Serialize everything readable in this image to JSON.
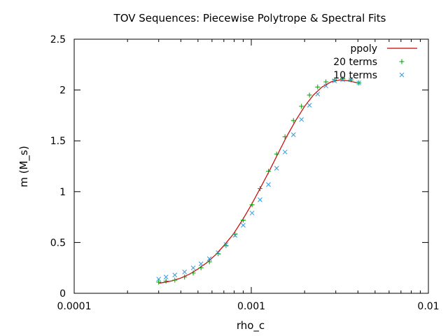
{
  "chart_data": {
    "type": "scatter",
    "title": "TOV Sequences: Piecewise Polytrope & Spectral Fits",
    "xlabel": "rho_c",
    "ylabel": "m (M_s)",
    "xscale": "log",
    "xlim": [
      0.0001,
      0.01
    ],
    "ylim": [
      0,
      2.5
    ],
    "xticks": [
      {
        "value": 0.0001,
        "label": "0.0001"
      },
      {
        "value": 0.001,
        "label": "0.001"
      },
      {
        "value": 0.01,
        "label": "0.01"
      }
    ],
    "yticks": [
      {
        "value": 0,
        "label": "0"
      },
      {
        "value": 0.5,
        "label": "0.5"
      },
      {
        "value": 1,
        "label": "1"
      },
      {
        "value": 1.5,
        "label": "1.5"
      },
      {
        "value": 2,
        "label": "2"
      },
      {
        "value": 2.5,
        "label": "2.5"
      }
    ],
    "grid": false,
    "legend_position": "top-right",
    "series": [
      {
        "name": "ppoly",
        "style": "line",
        "color": "#cc0000",
        "points": [
          [
            0.000302,
            0.1
          ],
          [
            0.00033,
            0.11
          ],
          [
            0.00036,
            0.125
          ],
          [
            0.0004,
            0.15
          ],
          [
            0.00045,
            0.19
          ],
          [
            0.0005,
            0.24
          ],
          [
            0.00056,
            0.3
          ],
          [
            0.00063,
            0.38
          ],
          [
            0.0007,
            0.47
          ],
          [
            0.00079,
            0.58
          ],
          [
            0.00089,
            0.72
          ],
          [
            0.001,
            0.87
          ],
          [
            0.00112,
            1.03
          ],
          [
            0.00126,
            1.2
          ],
          [
            0.00141,
            1.37
          ],
          [
            0.00158,
            1.54
          ],
          [
            0.00178,
            1.7
          ],
          [
            0.002,
            1.84
          ],
          [
            0.00224,
            1.95
          ],
          [
            0.00251,
            2.03
          ],
          [
            0.00282,
            2.08
          ],
          [
            0.00316,
            2.1
          ],
          [
            0.00355,
            2.09
          ],
          [
            0.00398,
            2.07
          ]
        ]
      },
      {
        "name": "20 terms",
        "style": "plus",
        "color": "#009e00",
        "points": [
          [
            0.0003,
            0.11
          ],
          [
            0.00033,
            0.12
          ],
          [
            0.00037,
            0.13
          ],
          [
            0.00042,
            0.16
          ],
          [
            0.00047,
            0.2
          ],
          [
            0.00052,
            0.25
          ],
          [
            0.00058,
            0.31
          ],
          [
            0.00065,
            0.39
          ],
          [
            0.00072,
            0.47
          ],
          [
            0.00081,
            0.58
          ],
          [
            0.0009,
            0.72
          ],
          [
            0.00101,
            0.87
          ],
          [
            0.00112,
            1.03
          ],
          [
            0.00125,
            1.2
          ],
          [
            0.00139,
            1.37
          ],
          [
            0.00155,
            1.54
          ],
          [
            0.00173,
            1.7
          ],
          [
            0.00192,
            1.84
          ],
          [
            0.00213,
            1.95
          ],
          [
            0.00237,
            2.03
          ],
          [
            0.00264,
            2.08
          ],
          [
            0.00295,
            2.1
          ],
          [
            0.00328,
            2.11
          ],
          [
            0.00365,
            2.1
          ],
          [
            0.00405,
            2.07
          ]
        ]
      },
      {
        "name": "10 terms",
        "style": "cross",
        "color": "#3399dd",
        "points": [
          [
            0.0003,
            0.14
          ],
          [
            0.00033,
            0.16
          ],
          [
            0.00037,
            0.18
          ],
          [
            0.00042,
            0.21
          ],
          [
            0.00047,
            0.25
          ],
          [
            0.00052,
            0.29
          ],
          [
            0.00058,
            0.34
          ],
          [
            0.00065,
            0.4
          ],
          [
            0.00072,
            0.48
          ],
          [
            0.00081,
            0.57
          ],
          [
            0.0009,
            0.67
          ],
          [
            0.00101,
            0.79
          ],
          [
            0.00112,
            0.92
          ],
          [
            0.00125,
            1.07
          ],
          [
            0.00139,
            1.23
          ],
          [
            0.00155,
            1.39
          ],
          [
            0.00173,
            1.56
          ],
          [
            0.00192,
            1.71
          ],
          [
            0.00213,
            1.85
          ],
          [
            0.00237,
            1.96
          ],
          [
            0.00264,
            2.04
          ],
          [
            0.00295,
            2.09
          ],
          [
            0.00328,
            2.1
          ],
          [
            0.00365,
            2.1
          ],
          [
            0.00405,
            2.07
          ]
        ]
      }
    ]
  }
}
